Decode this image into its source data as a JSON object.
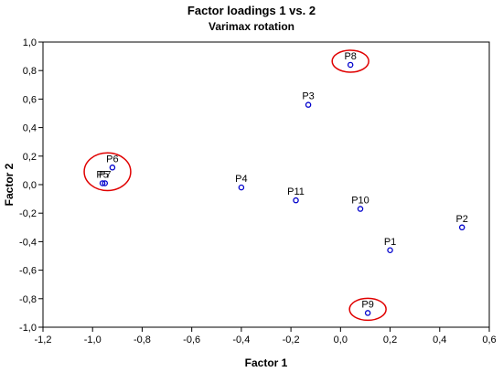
{
  "chart_data": {
    "type": "scatter",
    "title": "Factor loadings 1 vs. 2",
    "subtitle": "Varimax rotation",
    "xlabel": "Factor 1",
    "ylabel": "Factor 2",
    "xlim": [
      -1.2,
      0.6
    ],
    "ylim": [
      -1.0,
      1.0
    ],
    "xticks": [
      "-1,2",
      "-1,0",
      "-0,8",
      "-0,6",
      "-0,4",
      "-0,2",
      "0,0",
      "0,2",
      "0,4",
      "0,6"
    ],
    "yticks": [
      "1,0",
      "0,8",
      "0,6",
      "0,4",
      "0,2",
      "0,0",
      "-0,2",
      "-0,4",
      "-0,6",
      "-0,8",
      "-1,0"
    ],
    "grid": false,
    "point_color": "#0000cc",
    "highlight_color": "#e00000",
    "points": [
      {
        "label": "P1",
        "x": 0.2,
        "y": -0.46
      },
      {
        "label": "P2",
        "x": 0.49,
        "y": -0.3
      },
      {
        "label": "P3",
        "x": -0.13,
        "y": 0.56
      },
      {
        "label": "P4",
        "x": -0.4,
        "y": -0.02
      },
      {
        "label": "P5",
        "x": -0.96,
        "y": 0.01
      },
      {
        "label": "P6",
        "x": -0.92,
        "y": 0.12
      },
      {
        "label": "P7",
        "x": -0.95,
        "y": 0.01
      },
      {
        "label": "P8",
        "x": 0.04,
        "y": 0.84
      },
      {
        "label": "P9",
        "x": 0.11,
        "y": -0.9
      },
      {
        "label": "P10",
        "x": 0.08,
        "y": -0.17
      },
      {
        "label": "P11",
        "x": -0.18,
        "y": -0.11
      }
    ],
    "highlighted_groups": [
      {
        "members": [
          "P5",
          "P6",
          "P7"
        ]
      },
      {
        "members": [
          "P8"
        ]
      },
      {
        "members": [
          "P9"
        ]
      }
    ]
  }
}
